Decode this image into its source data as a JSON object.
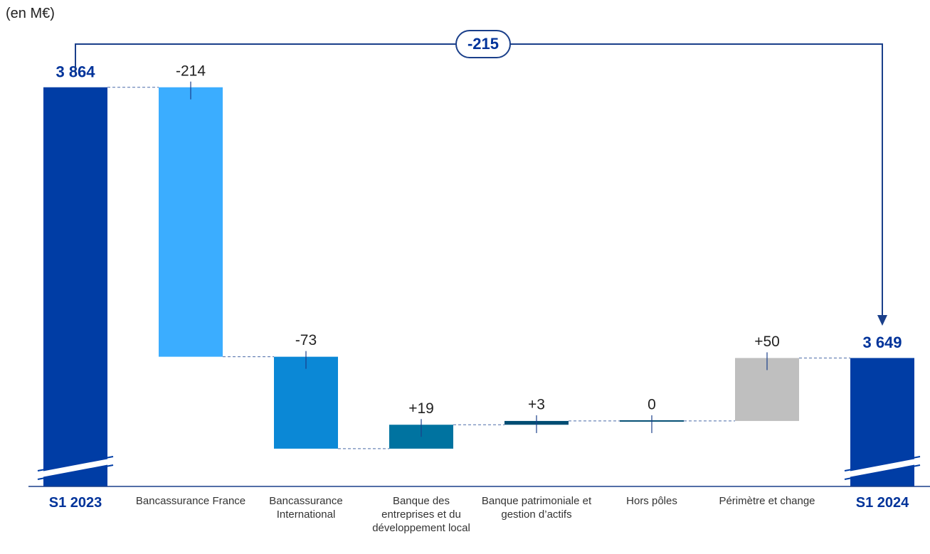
{
  "chart_data": {
    "type": "waterfall",
    "unit_label": "(en M€)",
    "categories": [
      "S1 2023",
      "Bancassurance France",
      "Bancassurance International",
      "Banque des entreprises et du développement local",
      "Banque patrimoniale et gestion d’actifs",
      "Hors pôles",
      "Périmètre et change",
      "S1 2024"
    ],
    "values": [
      3864,
      -214,
      -73,
      19,
      3,
      0,
      50,
      3649
    ],
    "value_labels": [
      "3 864",
      "-214",
      "-73",
      "+19",
      "+3",
      "0",
      "+50",
      "3 649"
    ],
    "is_total": [
      true,
      false,
      false,
      false,
      false,
      false,
      false,
      true
    ],
    "colors": [
      "#003da5",
      "#3badff",
      "#0b88d6",
      "#0073a0",
      "#004d73",
      "#004d73",
      "#bfbfbf",
      "#003da5"
    ],
    "ylim": [
      3547,
      3887
    ],
    "axis_break": true,
    "annotation": {
      "value": -215
    }
  }
}
